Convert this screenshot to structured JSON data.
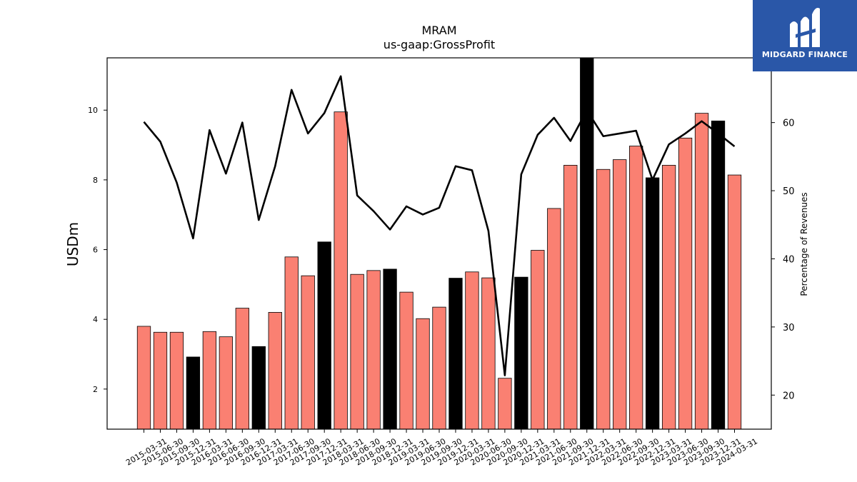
{
  "chart_data": {
    "type": "bar",
    "title": "MRAM",
    "subtitle": "us-gaap:GrossProfit",
    "ylabel": "USDm",
    "ylabel_right": "Percentage of Revenues",
    "ylim": [
      0.85,
      11.5
    ],
    "ylim_right": [
      15,
      69.5
    ],
    "yticks": [
      2,
      4,
      6,
      8,
      10
    ],
    "yticks_right": [
      20,
      30,
      40,
      50,
      60
    ],
    "grid": false,
    "categories": [
      "2015-03-31",
      "2015-06-30",
      "2015-09-30",
      "2015-12-31",
      "2016-03-31",
      "2016-06-30",
      "2016-09-30",
      "2016-12-31",
      "2017-03-31",
      "2017-06-30",
      "2017-09-30",
      "2017-12-31",
      "2018-03-31",
      "2018-06-30",
      "2018-09-30",
      "2018-12-31",
      "2019-03-31",
      "2019-06-30",
      "2019-09-30",
      "2019-12-31",
      "2020-03-31",
      "2020-06-30",
      "2020-09-30",
      "2020-12-31",
      "2021-03-31",
      "2021-06-30",
      "2021-09-30",
      "2021-12-31",
      "2022-03-31",
      "2022-06-30",
      "2022-09-30",
      "2022-12-31",
      "2023-03-31",
      "2023-06-30",
      "2023-09-30",
      "2023-12-31",
      "2024-03-31"
    ],
    "series": [
      {
        "values": [
          3.8,
          3.63,
          3.63,
          2.92,
          3.65,
          3.5,
          4.32,
          3.22,
          4.2,
          5.79,
          5.25,
          6.22,
          9.95,
          5.29,
          5.4,
          5.44,
          4.78,
          4.02,
          4.35,
          5.18,
          5.36,
          5.19,
          2.31,
          5.21,
          5.98,
          7.18,
          8.42,
          11.5,
          8.3,
          8.58,
          8.97,
          8.06,
          8.42,
          9.2,
          9.91,
          9.69,
          8.14
        ],
        "colors": [
          "#fa8072",
          "#fa8072",
          "#fa8072",
          "#000000",
          "#fa8072",
          "#fa8072",
          "#fa8072",
          "#000000",
          "#fa8072",
          "#fa8072",
          "#fa8072",
          "#000000",
          "#fa8072",
          "#fa8072",
          "#fa8072",
          "#000000",
          "#fa8072",
          "#fa8072",
          "#fa8072",
          "#000000",
          "#fa8072",
          "#fa8072",
          "#fa8072",
          "#000000",
          "#fa8072",
          "#fa8072",
          "#fa8072",
          "#000000",
          "#fa8072",
          "#fa8072",
          "#fa8072",
          "#000000",
          "#fa8072",
          "#fa8072",
          "#fa8072",
          "#000000",
          "#fa8072"
        ]
      },
      {
        "type": "line",
        "axis": "right",
        "color": "#000000",
        "values": [
          60.1,
          57.2,
          51.2,
          43.0,
          58.9,
          52.5,
          60.0,
          45.7,
          53.6,
          64.8,
          58.4,
          61.4,
          66.8,
          49.3,
          47.0,
          44.3,
          47.7,
          46.5,
          47.5,
          53.6,
          53.0,
          44.1,
          22.9,
          52.4,
          58.2,
          60.7,
          57.3,
          61.8,
          58.0,
          58.4,
          58.8,
          51.6,
          56.8,
          58.4,
          60.2,
          58.4,
          56.5
        ]
      }
    ]
  },
  "logo": {
    "text": "MIDGARD FINANCE",
    "bg": "#2a57a8"
  }
}
